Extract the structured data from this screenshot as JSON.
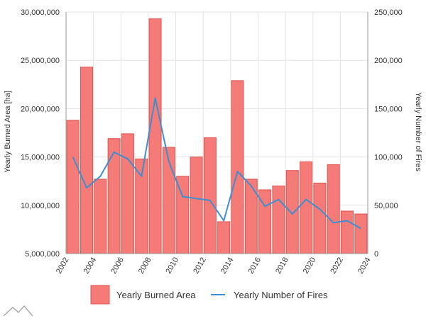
{
  "chart_data": {
    "type": "bar+line",
    "categories": [
      "2002",
      "2003",
      "2004",
      "2005",
      "2006",
      "2007",
      "2008",
      "2009",
      "2010",
      "2011",
      "2012",
      "2013",
      "2014",
      "2015",
      "2016",
      "2017",
      "2018",
      "2019",
      "2020",
      "2021",
      "2022",
      "2023"
    ],
    "x_tick_labels": [
      "2002",
      "2004",
      "2006",
      "2008",
      "2010",
      "2012",
      "2014",
      "2016",
      "2018",
      "2020",
      "2022",
      "2024"
    ],
    "series": [
      {
        "name": "Yearly Burned Area",
        "type": "bar",
        "axis": "left",
        "color": "#f47b77",
        "values": [
          18800000,
          24300000,
          12700000,
          16900000,
          17400000,
          14800000,
          29300000,
          16000000,
          13000000,
          15000000,
          17000000,
          8300000,
          22900000,
          12700000,
          11600000,
          12000000,
          13600000,
          14500000,
          12300000,
          14200000,
          9400000,
          9100000
        ]
      },
      {
        "name": "Yearly Number of Fires",
        "type": "line",
        "axis": "right",
        "color": "#3d8fd1",
        "values": [
          100000,
          68000,
          80000,
          105000,
          98000,
          80000,
          161000,
          95000,
          59000,
          57000,
          55000,
          34000,
          85000,
          70000,
          49000,
          56000,
          41000,
          56000,
          46000,
          32000,
          34000,
          26000
        ]
      }
    ],
    "y_left": {
      "label": "Yearly Burned Area [ha]",
      "min": 5000000,
      "max": 30000000,
      "ticks": [
        "5,000,000",
        "10,000,000",
        "15,000,000",
        "20,000,000",
        "25,000,000",
        "30,000,000"
      ]
    },
    "y_right": {
      "label": "Yearly Number of Fires",
      "min": 0,
      "max": 250000,
      "ticks": [
        "0",
        "50,000",
        "100,000",
        "150,000",
        "200,000",
        "250,000"
      ]
    },
    "legend": [
      {
        "label": "Yearly Burned Area",
        "kind": "bar",
        "color": "#f47b77"
      },
      {
        "label": "Yearly Number of Fires",
        "kind": "line",
        "color": "#3d8fd1"
      }
    ],
    "grid": true
  }
}
